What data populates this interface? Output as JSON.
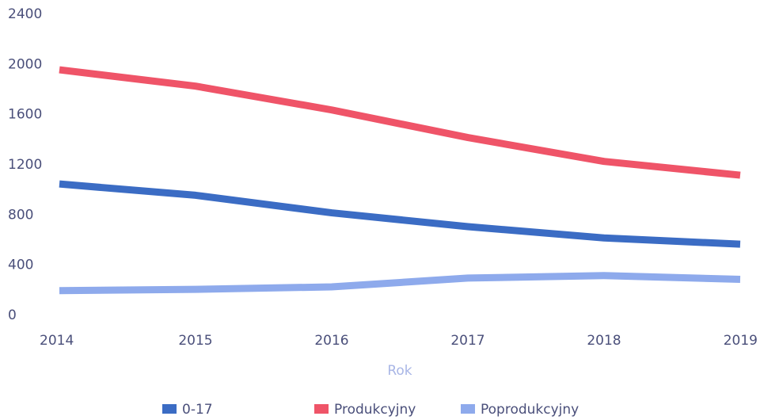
{
  "chart_data": {
    "type": "line",
    "x_label": "Rok",
    "x": [
      2014,
      2015,
      2016,
      2017,
      2018,
      2019
    ],
    "series": [
      {
        "name": "0-17",
        "color": "#3b6cc4",
        "values": [
          1060,
          970,
          830,
          720,
          630,
          580
        ]
      },
      {
        "name": "Produkcyjny",
        "color": "#ef5468",
        "values": [
          1970,
          1840,
          1650,
          1430,
          1240,
          1130
        ]
      },
      {
        "name": "Poprodukcyjny",
        "color": "#8eaaec",
        "values": [
          210,
          220,
          240,
          310,
          330,
          300
        ]
      }
    ],
    "xlim": [
      2014,
      2019
    ],
    "xticks": [
      2014,
      2015,
      2016,
      2017,
      2018,
      2019
    ],
    "ylim": [
      0,
      2400
    ],
    "yticks": [
      0,
      400,
      800,
      1200,
      1600,
      2000,
      2400
    ],
    "legend": "bottom"
  }
}
